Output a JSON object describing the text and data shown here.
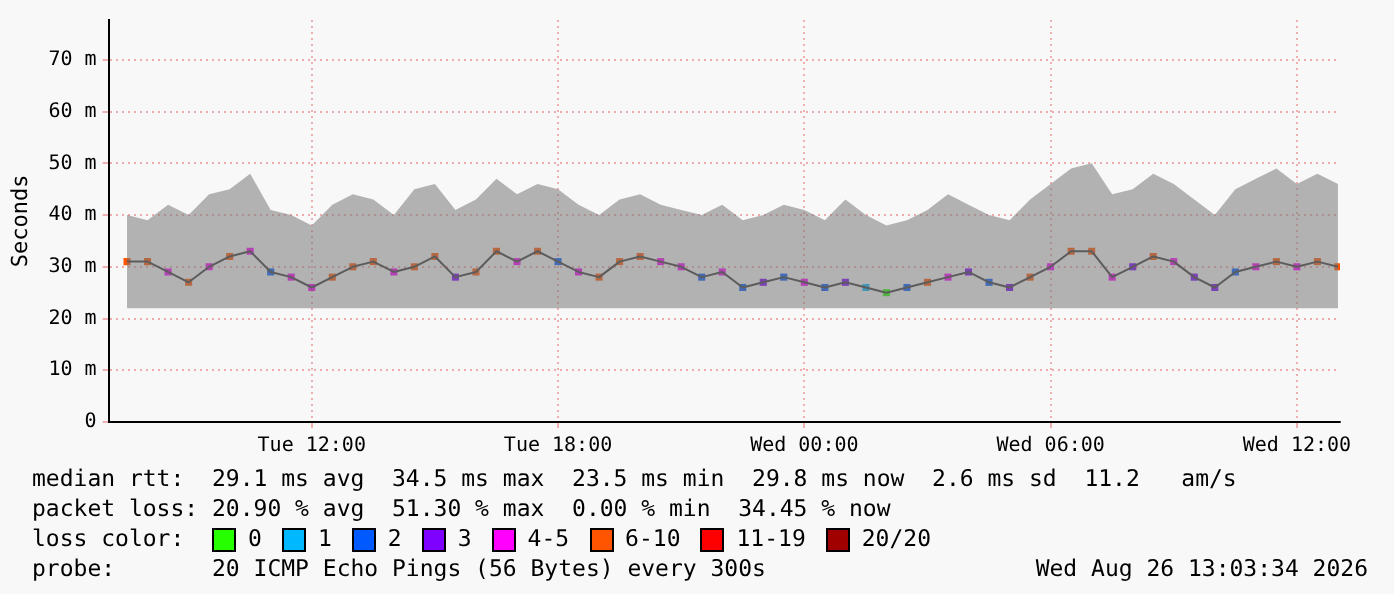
{
  "chart_data": {
    "type": "line",
    "ylabel": "Seconds",
    "xlim": [
      "2026-08-25T07:03",
      "2026-08-26T13:03"
    ],
    "xticks": [
      {
        "value": "2026-08-25T12:00",
        "label": "Tue 12:00"
      },
      {
        "value": "2026-08-25T18:00",
        "label": "Tue 18:00"
      },
      {
        "value": "2026-08-26T00:00",
        "label": "Wed 00:00"
      },
      {
        "value": "2026-08-26T06:00",
        "label": "Wed 06:00"
      },
      {
        "value": "2026-08-26T12:00",
        "label": "Wed 12:00"
      }
    ],
    "ylim": [
      0,
      77.7
    ],
    "yticks": [
      0,
      {
        "value": 10,
        "label": "10 m"
      },
      {
        "value": 20,
        "label": "20 m"
      },
      {
        "value": 30,
        "label": "30 m"
      },
      {
        "value": 40,
        "label": "40 m"
      },
      {
        "value": 50,
        "label": "50 m"
      },
      {
        "value": 60,
        "label": "60 m"
      },
      {
        "value": 70,
        "label": "70 m"
      }
    ],
    "grid": true,
    "legend": "bottom",
    "legend_title": "loss color:",
    "marker": "square",
    "x": [
      "2026-08-25T07:30",
      "2026-08-25T08:00",
      "2026-08-25T08:30",
      "2026-08-25T09:00",
      "2026-08-25T09:30",
      "2026-08-25T10:00",
      "2026-08-25T10:30",
      "2026-08-25T11:00",
      "2026-08-25T11:30",
      "2026-08-25T12:00",
      "2026-08-25T12:30",
      "2026-08-25T13:00",
      "2026-08-25T13:30",
      "2026-08-25T14:00",
      "2026-08-25T14:30",
      "2026-08-25T15:00",
      "2026-08-25T15:30",
      "2026-08-25T16:00",
      "2026-08-25T16:30",
      "2026-08-25T17:00",
      "2026-08-25T17:30",
      "2026-08-25T18:00",
      "2026-08-25T18:30",
      "2026-08-25T19:00",
      "2026-08-25T19:30",
      "2026-08-25T20:00",
      "2026-08-25T20:30",
      "2026-08-25T21:00",
      "2026-08-25T21:30",
      "2026-08-25T22:00",
      "2026-08-25T22:30",
      "2026-08-25T23:00",
      "2026-08-25T23:30",
      "2026-08-26T00:00",
      "2026-08-26T00:30",
      "2026-08-26T01:00",
      "2026-08-26T01:30",
      "2026-08-26T02:00",
      "2026-08-26T02:30",
      "2026-08-26T03:00",
      "2026-08-26T03:30",
      "2026-08-26T04:00",
      "2026-08-26T04:30",
      "2026-08-26T05:00",
      "2026-08-26T05:30",
      "2026-08-26T06:00",
      "2026-08-26T06:30",
      "2026-08-26T07:00",
      "2026-08-26T07:30",
      "2026-08-26T08:00",
      "2026-08-26T08:30",
      "2026-08-26T09:00",
      "2026-08-26T09:30",
      "2026-08-26T10:00",
      "2026-08-26T10:30",
      "2026-08-26T11:00",
      "2026-08-26T11:30",
      "2026-08-26T12:00",
      "2026-08-26T12:30",
      "2026-08-26T13:00"
    ],
    "series": [
      {
        "color": "#3a3a3a",
        "marker": "none",
        "values": [
          31,
          31,
          29,
          27,
          30,
          32,
          33,
          29,
          28,
          26,
          28,
          30,
          31,
          29,
          30,
          32,
          28,
          29,
          33,
          31,
          33,
          31,
          29,
          28,
          31,
          32,
          31,
          30,
          28,
          29,
          26,
          27,
          28,
          27,
          26,
          27,
          26,
          25,
          26,
          27,
          28,
          29,
          27,
          26,
          28,
          30,
          33,
          33,
          28,
          30,
          32,
          31,
          28,
          26,
          29,
          30,
          31,
          30,
          31,
          30
        ],
        "lower": [
          22,
          22,
          22,
          22,
          22,
          22,
          22,
          22,
          22,
          22,
          22,
          22,
          22,
          22,
          22,
          22,
          22,
          22,
          22,
          22,
          22,
          22,
          22,
          22,
          22,
          22,
          22,
          22,
          22,
          22,
          22,
          22,
          22,
          22,
          22,
          22,
          22,
          22,
          22,
          22,
          22,
          22,
          22,
          22,
          22,
          22,
          22,
          22,
          22,
          22,
          22,
          22,
          22,
          22,
          22,
          22,
          22,
          22,
          22,
          22
        ],
        "upper": [
          40,
          39,
          42,
          40,
          44,
          45,
          48,
          41,
          40,
          38,
          42,
          44,
          43,
          40,
          45,
          46,
          41,
          43,
          47,
          44,
          46,
          45,
          42,
          40,
          43,
          44,
          42,
          41,
          40,
          42,
          39,
          40,
          42,
          41,
          39,
          43,
          40,
          38,
          39,
          41,
          44,
          42,
          40,
          39,
          43,
          46,
          49,
          50,
          44,
          45,
          48,
          46,
          43,
          40,
          45,
          47,
          49,
          46,
          48,
          46
        ]
      },
      {
        "type": "scatter",
        "name": "0",
        "color": "#26ff00",
        "x": [
          "2026-08-26T02:00"
        ],
        "values": [
          25
        ]
      },
      {
        "type": "scatter",
        "name": "1",
        "color": "#00b8ff",
        "x": [
          "2026-08-26T01:30"
        ],
        "values": [
          26
        ]
      },
      {
        "type": "scatter",
        "name": "2",
        "color": "#0059ff",
        "x": [
          "2026-08-25T11:00",
          "2026-08-25T18:00",
          "2026-08-25T21:30",
          "2026-08-25T22:30",
          "2026-08-25T23:30",
          "2026-08-26T00:30",
          "2026-08-26T02:30",
          "2026-08-26T04:30",
          "2026-08-26T10:30"
        ],
        "values": [
          29,
          31,
          28,
          26,
          28,
          26,
          26,
          27,
          29
        ]
      },
      {
        "type": "scatter",
        "name": "3",
        "color": "#7e00ff",
        "x": [
          "2026-08-25T15:30",
          "2026-08-25T23:00",
          "2026-08-26T01:00",
          "2026-08-26T04:00",
          "2026-08-26T05:00",
          "2026-08-26T08:00",
          "2026-08-26T09:30",
          "2026-08-26T10:00"
        ],
        "values": [
          28,
          27,
          27,
          29,
          26,
          30,
          28,
          26
        ]
      },
      {
        "type": "scatter",
        "name": "4-5",
        "color": "#ff00ff",
        "x": [
          "2026-08-25T08:30",
          "2026-08-25T09:30",
          "2026-08-25T10:30",
          "2026-08-25T11:30",
          "2026-08-25T12:00",
          "2026-08-25T14:00",
          "2026-08-25T17:00",
          "2026-08-25T18:30",
          "2026-08-25T20:30",
          "2026-08-25T21:00",
          "2026-08-25T22:00",
          "2026-08-26T00:00",
          "2026-08-26T03:30",
          "2026-08-26T06:00",
          "2026-08-26T07:30",
          "2026-08-26T09:00",
          "2026-08-26T11:00",
          "2026-08-26T12:00"
        ],
        "values": [
          29,
          30,
          33,
          28,
          26,
          29,
          31,
          29,
          31,
          30,
          29,
          27,
          28,
          30,
          28,
          31,
          30,
          30
        ]
      },
      {
        "type": "scatter",
        "name": "6-10",
        "color": "#ff5500",
        "x": [
          "2026-08-25T07:30",
          "2026-08-25T08:00",
          "2026-08-25T09:00",
          "2026-08-25T10:00",
          "2026-08-25T12:30",
          "2026-08-25T13:00",
          "2026-08-25T13:30",
          "2026-08-25T14:30",
          "2026-08-25T15:00",
          "2026-08-25T16:00",
          "2026-08-25T16:30",
          "2026-08-25T17:30",
          "2026-08-25T19:00",
          "2026-08-25T19:30",
          "2026-08-25T20:00",
          "2026-08-26T03:00",
          "2026-08-26T05:30",
          "2026-08-26T06:30",
          "2026-08-26T07:00",
          "2026-08-26T08:30",
          "2026-08-26T11:30",
          "2026-08-26T12:30",
          "2026-08-26T13:00"
        ],
        "values": [
          31,
          31,
          27,
          32,
          28,
          30,
          31,
          30,
          32,
          29,
          33,
          33,
          28,
          31,
          32,
          27,
          28,
          33,
          33,
          32,
          31,
          31,
          30
        ]
      },
      {
        "type": "scatter",
        "name": "11-19",
        "color": "#ff0000",
        "values": [
          null,
          null,
          null,
          null,
          null,
          null,
          null,
          null,
          null,
          null,
          null,
          null,
          null,
          null,
          null,
          null,
          null,
          null,
          null,
          null,
          null,
          null,
          null,
          null,
          null,
          null,
          null,
          null,
          null,
          null,
          null,
          null,
          null,
          null,
          null,
          null,
          null,
          null,
          null,
          null,
          null,
          null,
          null,
          null,
          null,
          null,
          null,
          null,
          null,
          null,
          null,
          null,
          null,
          null,
          null,
          null,
          null,
          null,
          null,
          null
        ]
      },
      {
        "type": "scatter",
        "name": "20/20",
        "color": "#a10000",
        "values": [
          null,
          null,
          null,
          null,
          null,
          null,
          null,
          null,
          null,
          null,
          null,
          null,
          null,
          null,
          null,
          null,
          null,
          null,
          null,
          null,
          null,
          null,
          null,
          null,
          null,
          null,
          null,
          null,
          null,
          null,
          null,
          null,
          null,
          null,
          null,
          null,
          null,
          null,
          null,
          null,
          null,
          null,
          null,
          null,
          null,
          null,
          null,
          null,
          null,
          null,
          null,
          null,
          null,
          null,
          null,
          null,
          null,
          null,
          null,
          null
        ]
      }
    ],
    "annotations": [
      "median rtt:  29.1 ms avg  34.5 ms max  23.5 ms min  29.8 ms now  2.6 ms sd  11.2   am/s",
      "packet loss: 20.90 % avg  51.30 % max  0.00 % min  34.45 % now",
      "probe:       20 ICMP Echo Pings (56 Bytes) every 300s",
      "Wed Aug 26 13:03:34 2026"
    ]
  }
}
